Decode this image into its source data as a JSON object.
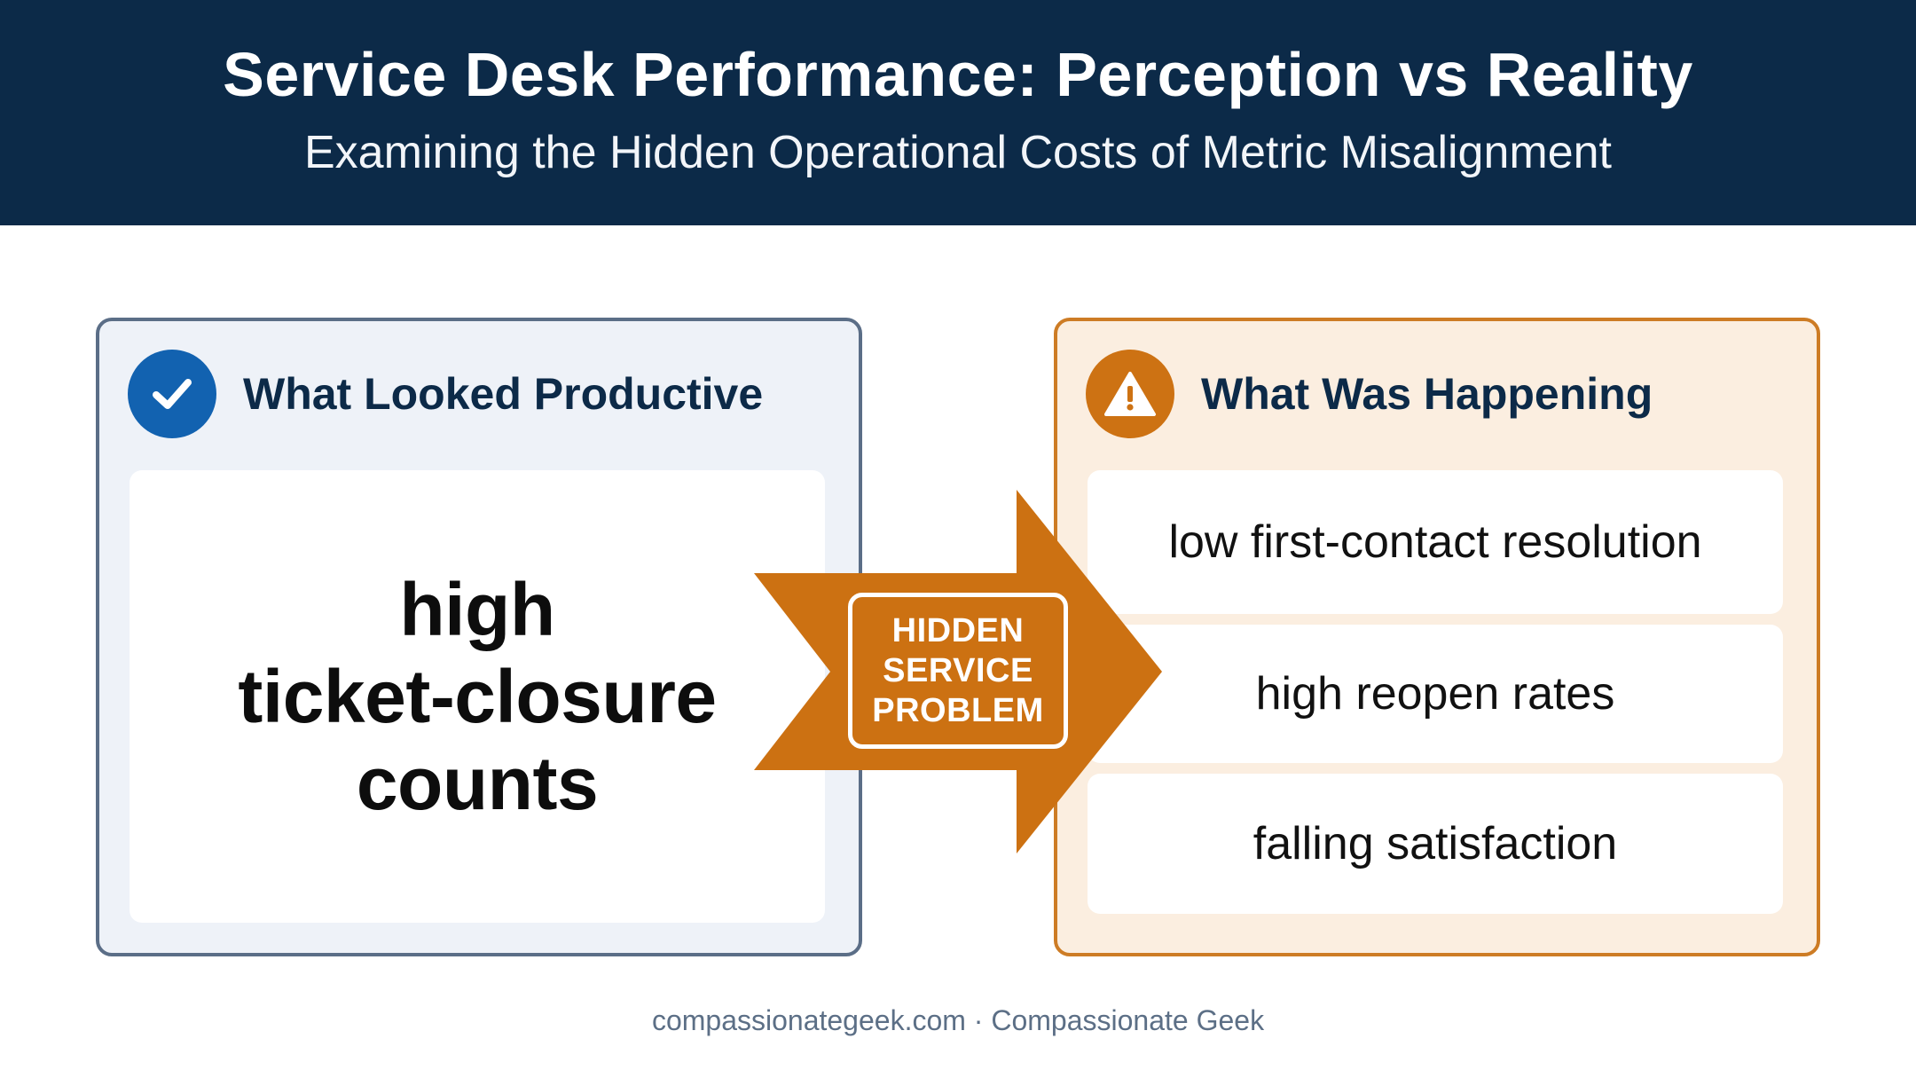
{
  "header": {
    "title": "Service Desk Performance: Perception vs Reality",
    "subtitle": "Examining the Hidden Operational Costs of Metric Misalignment"
  },
  "left_panel": {
    "icon": "check-icon",
    "title": "What Looked Productive",
    "claim_lines": [
      "high",
      "ticket-closure",
      "counts"
    ]
  },
  "arrow": {
    "label_lines": [
      "HIDDEN",
      "SERVICE",
      "PROBLEM"
    ]
  },
  "right_panel": {
    "icon": "warning-icon",
    "title": "What Was Happening",
    "items": [
      "low first-contact resolution",
      "high reopen rates",
      "falling satisfaction"
    ]
  },
  "footer": {
    "text": "compassionategeek.com · Compassionate Geek"
  },
  "colors": {
    "header_bg": "#0c2a48",
    "left_accent": "#1262b0",
    "left_border": "#5b6e87",
    "right_accent": "#cd7213",
    "right_border": "#cd7c25",
    "arrow": "#cc7112"
  }
}
